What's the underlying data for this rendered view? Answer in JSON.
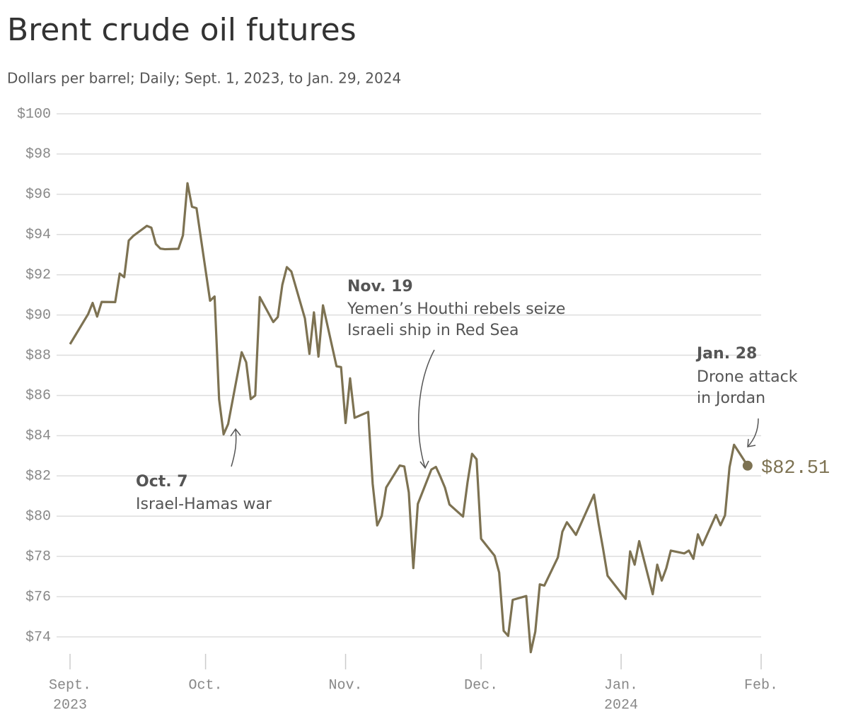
{
  "chart_data": {
    "type": "line",
    "title": "Brent crude oil futures",
    "subtitle": "Dollars per barrel; Daily; Sept. 1, 2023, to Jan. 29, 2024",
    "color": "#7d7252",
    "grid": true,
    "xlim": [
      "2023-09-01",
      "2024-02-01"
    ],
    "ylim": [
      73,
      100
    ],
    "yticks": [
      {
        "value": 74,
        "label": "$74"
      },
      {
        "value": 76,
        "label": "$76"
      },
      {
        "value": 78,
        "label": "$78"
      },
      {
        "value": 80,
        "label": "$80"
      },
      {
        "value": 82,
        "label": "$82"
      },
      {
        "value": 84,
        "label": "$84"
      },
      {
        "value": 86,
        "label": "$86"
      },
      {
        "value": 88,
        "label": "$88"
      },
      {
        "value": 90,
        "label": "$90"
      },
      {
        "value": 92,
        "label": "$92"
      },
      {
        "value": 94,
        "label": "$94"
      },
      {
        "value": 96,
        "label": "$96"
      },
      {
        "value": 98,
        "label": "$98"
      },
      {
        "value": 100,
        "label": "$100"
      }
    ],
    "xticks": [
      {
        "value": "2023-09-01",
        "label": "Sept.",
        "sublabel": "2023"
      },
      {
        "value": "2023-10-01",
        "label": "Oct."
      },
      {
        "value": "2023-11-01",
        "label": "Nov."
      },
      {
        "value": "2023-12-01",
        "label": "Dec."
      },
      {
        "value": "2024-01-01",
        "label": "Jan.",
        "sublabel": "2024"
      },
      {
        "value": "2024-02-01",
        "label": "Feb."
      }
    ],
    "x": [
      "2023-09-01",
      "2023-09-05",
      "2023-09-06",
      "2023-09-07",
      "2023-09-08",
      "2023-09-11",
      "2023-09-12",
      "2023-09-13",
      "2023-09-14",
      "2023-09-15",
      "2023-09-18",
      "2023-09-19",
      "2023-09-20",
      "2023-09-21",
      "2023-09-22",
      "2023-09-25",
      "2023-09-26",
      "2023-09-27",
      "2023-09-28",
      "2023-09-29",
      "2023-10-02",
      "2023-10-03",
      "2023-10-04",
      "2023-10-05",
      "2023-10-06",
      "2023-10-09",
      "2023-10-10",
      "2023-10-11",
      "2023-10-12",
      "2023-10-13",
      "2023-10-16",
      "2023-10-17",
      "2023-10-18",
      "2023-10-19",
      "2023-10-20",
      "2023-10-23",
      "2023-10-24",
      "2023-10-25",
      "2023-10-26",
      "2023-10-27",
      "2023-10-30",
      "2023-10-31",
      "2023-11-01",
      "2023-11-02",
      "2023-11-03",
      "2023-11-06",
      "2023-11-07",
      "2023-11-08",
      "2023-11-09",
      "2023-11-10",
      "2023-11-13",
      "2023-11-14",
      "2023-11-15",
      "2023-11-16",
      "2023-11-17",
      "2023-11-20",
      "2023-11-21",
      "2023-11-22",
      "2023-11-23",
      "2023-11-24",
      "2023-11-27",
      "2023-11-28",
      "2023-11-29",
      "2023-11-30",
      "2023-12-01",
      "2023-12-04",
      "2023-12-05",
      "2023-12-06",
      "2023-12-07",
      "2023-12-08",
      "2023-12-11",
      "2023-12-12",
      "2023-12-13",
      "2023-12-14",
      "2023-12-15",
      "2023-12-18",
      "2023-12-19",
      "2023-12-20",
      "2023-12-21",
      "2023-12-22",
      "2023-12-26",
      "2023-12-27",
      "2023-12-28",
      "2023-12-29",
      "2024-01-02",
      "2024-01-03",
      "2024-01-04",
      "2024-01-05",
      "2024-01-08",
      "2024-01-09",
      "2024-01-10",
      "2024-01-11",
      "2024-01-12",
      "2024-01-15",
      "2024-01-16",
      "2024-01-17",
      "2024-01-18",
      "2024-01-19",
      "2024-01-22",
      "2024-01-23",
      "2024-01-24",
      "2024-01-25",
      "2024-01-26",
      "2024-01-29"
    ],
    "values": [
      88.55,
      90.04,
      90.6,
      89.92,
      90.65,
      90.64,
      92.06,
      91.88,
      93.7,
      93.93,
      94.43,
      94.34,
      93.53,
      93.3,
      93.27,
      93.29,
      93.96,
      96.55,
      95.38,
      95.31,
      90.71,
      90.92,
      85.81,
      84.07,
      84.58,
      88.15,
      87.65,
      85.82,
      86.0,
      90.89,
      89.65,
      89.9,
      91.5,
      92.38,
      92.16,
      89.83,
      88.07,
      90.13,
      87.93,
      90.48,
      87.45,
      87.41,
      84.63,
      86.85,
      84.89,
      85.18,
      81.61,
      79.54,
      80.01,
      81.43,
      82.52,
      82.47,
      81.18,
      77.42,
      80.61,
      82.32,
      82.45,
      81.96,
      81.42,
      80.58,
      79.98,
      81.68,
      83.1,
      82.83,
      78.88,
      78.03,
      77.2,
      74.3,
      74.05,
      75.84,
      76.03,
      73.24,
      74.26,
      76.61,
      76.55,
      77.95,
      79.23,
      79.7,
      79.39,
      79.07,
      81.07,
      79.65,
      78.39,
      77.04,
      75.89,
      78.25,
      77.59,
      78.76,
      76.12,
      77.59,
      76.8,
      77.41,
      78.29,
      78.15,
      78.29,
      77.88,
      79.1,
      78.56,
      80.06,
      79.55,
      80.04,
      82.43,
      83.55,
      82.51
    ],
    "end_label": "$82.51",
    "annotations": [
      {
        "title": "Oct. 7",
        "lines": [
          "Israel-Hamas war"
        ]
      },
      {
        "title": "Nov. 19",
        "lines": [
          "Yemen’s Houthi rebels seize",
          "Israeli ship in Red Sea"
        ]
      },
      {
        "title": "Jan. 28",
        "lines": [
          "Drone attack",
          "in Jordan"
        ]
      }
    ]
  }
}
